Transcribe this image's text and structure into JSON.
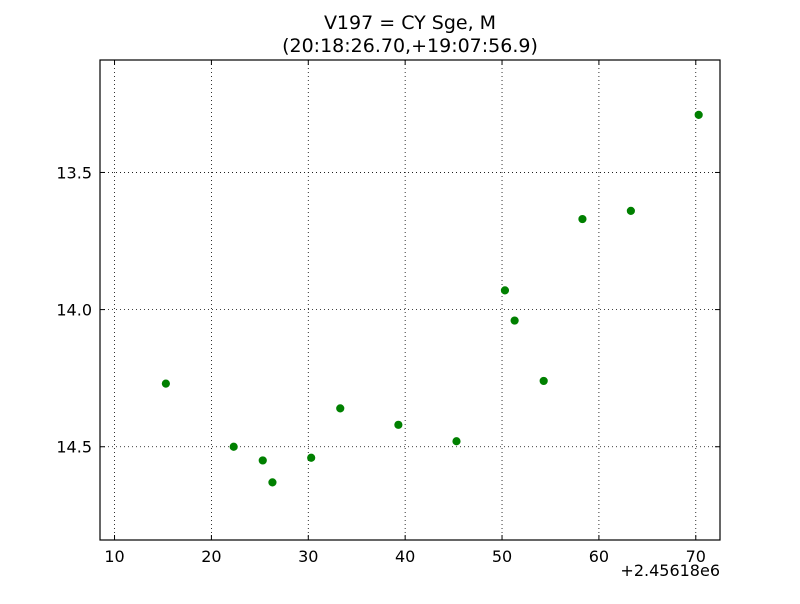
{
  "chart_data": {
    "type": "scatter",
    "title": "V197 = CY Sge, M",
    "subtitle": "(20:18:26.70,+19:07:56.9)",
    "xlabel": "",
    "ylabel": "",
    "x_offset_label": "+2.45618e6",
    "xlim": [
      8.5,
      72.5
    ],
    "ylim": [
      14.84,
      13.09
    ],
    "y_inverted": true,
    "xticks": [
      10,
      20,
      30,
      40,
      50,
      60,
      70
    ],
    "yticks": [
      13.5,
      14.0,
      14.5
    ],
    "xtick_labels": [
      "10",
      "20",
      "30",
      "40",
      "50",
      "60",
      "70"
    ],
    "ytick_labels": [
      "13.5",
      "14.0",
      "14.5"
    ],
    "grid": true,
    "marker_color": "#008000",
    "series": [
      {
        "x": [
          15.3,
          22.3,
          25.3,
          26.3,
          30.3,
          33.3,
          39.3,
          45.3,
          50.3,
          51.3,
          54.3,
          58.3,
          63.3,
          70.3
        ],
        "y": [
          14.27,
          14.5,
          14.55,
          14.63,
          14.54,
          14.36,
          14.42,
          14.48,
          13.93,
          14.04,
          14.26,
          13.67,
          13.64,
          13.29
        ]
      }
    ]
  }
}
